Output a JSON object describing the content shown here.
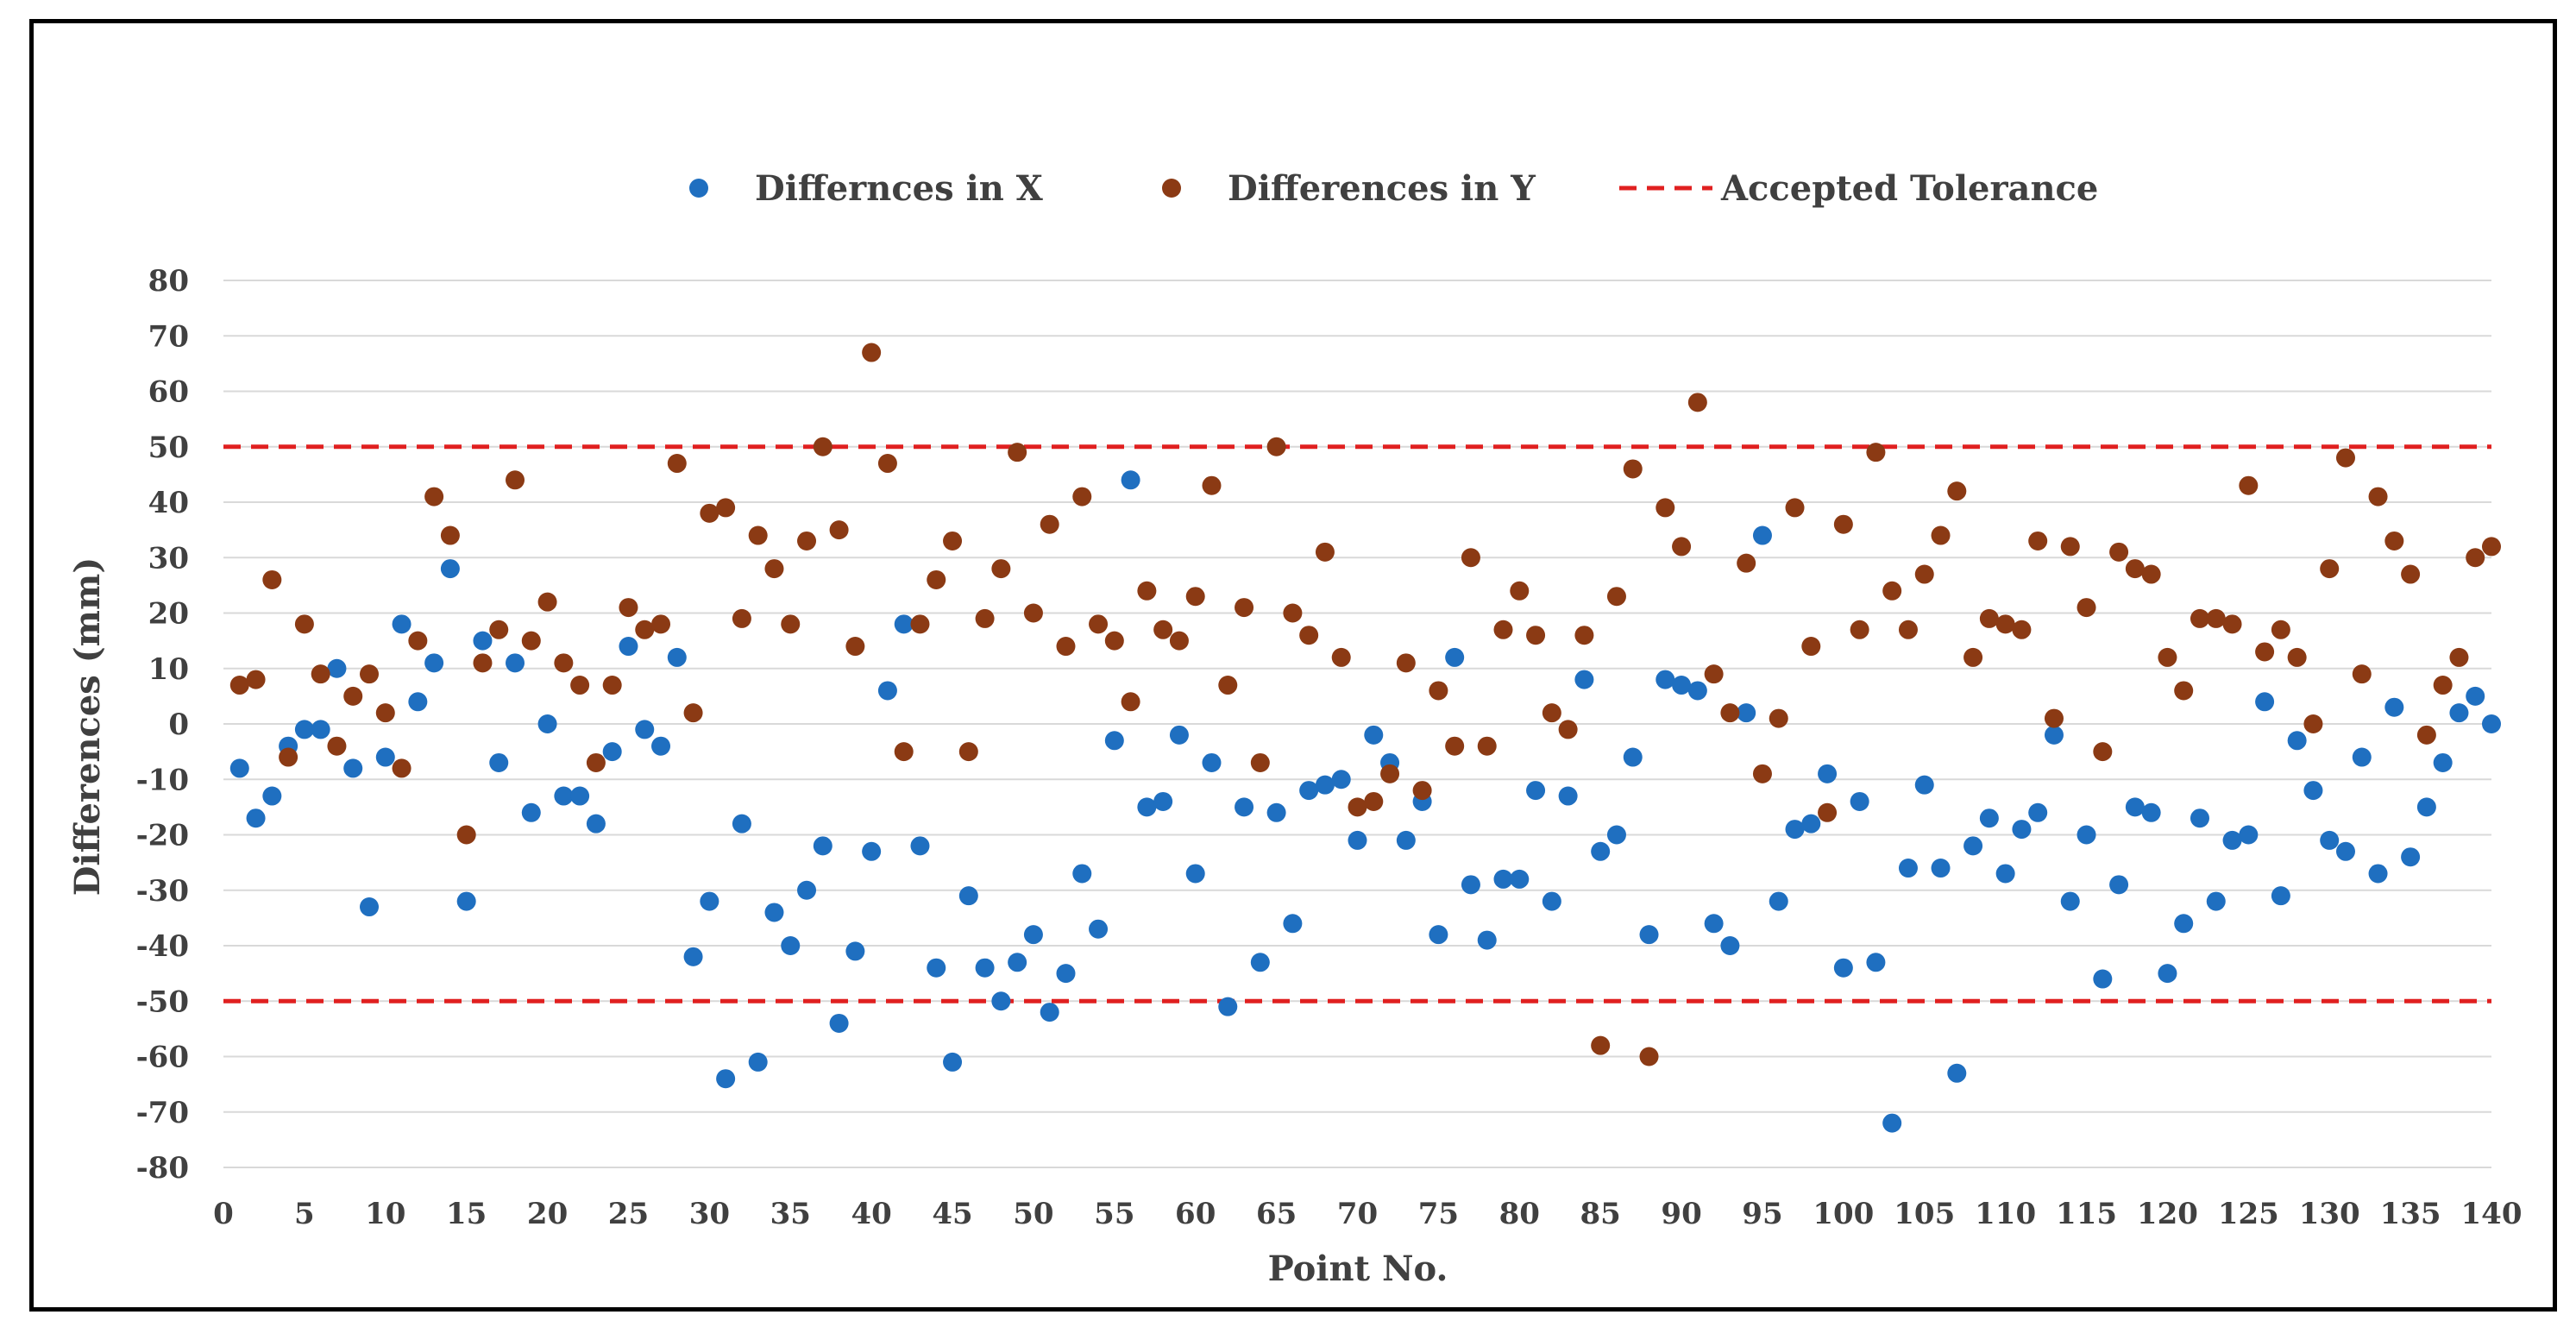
{
  "chart_data": {
    "type": "scatter",
    "title": "",
    "xlabel": "Point No.",
    "ylabel": "Differences (mm)",
    "xlim": [
      0,
      140
    ],
    "ylim": [
      -80,
      80
    ],
    "xticks": [
      0,
      5,
      10,
      15,
      20,
      25,
      30,
      35,
      40,
      45,
      50,
      55,
      60,
      65,
      70,
      75,
      80,
      85,
      90,
      95,
      100,
      105,
      110,
      115,
      120,
      125,
      130,
      135,
      140
    ],
    "yticks": [
      -80,
      -70,
      -60,
      -50,
      -40,
      -30,
      -20,
      -10,
      0,
      10,
      20,
      30,
      40,
      50,
      60,
      70,
      80
    ],
    "grid": true,
    "legend_position": "top",
    "tolerance": {
      "name": "Accepted Tolerance",
      "upper": 50,
      "lower": -50,
      "color": "#e02020"
    },
    "series": [
      {
        "name": "Differnces in X",
        "color": "#1f6fc0",
        "values": [
          -8,
          -17,
          -13,
          -4,
          -1,
          -1,
          10,
          -8,
          -33,
          -6,
          18,
          4,
          11,
          28,
          -32,
          15,
          -7,
          11,
          -16,
          0,
          -13,
          -13,
          -18,
          -5,
          14,
          -1,
          -4,
          12,
          -42,
          -32,
          -64,
          -18,
          -61,
          -34,
          -40,
          -30,
          -22,
          -54,
          -41,
          -23,
          6,
          18,
          -22,
          -44,
          -61,
          -31,
          -44,
          -50,
          -43,
          -38,
          -52,
          -45,
          -27,
          -37,
          -3,
          44,
          -15,
          -14,
          -2,
          -27,
          -7,
          -51,
          -15,
          -43,
          -16,
          -36,
          -12,
          -11,
          -10,
          -21,
          -2,
          -7,
          -21,
          -14,
          -38,
          12,
          -29,
          -39,
          -28,
          -28,
          -12,
          -32,
          -13,
          8,
          -23,
          -20,
          -6,
          -38,
          8,
          7,
          6,
          -36,
          -40,
          2,
          34,
          -32,
          -19,
          -18,
          -9,
          -44,
          -14,
          -43,
          -72,
          -26,
          -11,
          -26,
          -63,
          -22,
          -17,
          -27,
          -19,
          -16,
          -2,
          -32,
          -20,
          -46,
          -29,
          -15,
          -16,
          -45,
          -36,
          -17,
          -32,
          -21,
          -20,
          4,
          -31,
          -3,
          -12,
          -21,
          -23,
          -6,
          -27,
          3,
          -24,
          -15,
          -7,
          2,
          5,
          0
        ]
      },
      {
        "name": "Differences in Y",
        "color": "#8b3a14",
        "values": [
          7,
          8,
          26,
          -6,
          18,
          9,
          -4,
          5,
          9,
          2,
          -8,
          15,
          41,
          34,
          -20,
          11,
          17,
          44,
          15,
          22,
          11,
          7,
          -7,
          7,
          21,
          17,
          18,
          47,
          2,
          38,
          39,
          19,
          34,
          28,
          18,
          33,
          50,
          35,
          14,
          67,
          47,
          -5,
          18,
          26,
          33,
          -5,
          19,
          28,
          49,
          20,
          36,
          14,
          41,
          18,
          15,
          4,
          24,
          17,
          15,
          23,
          43,
          7,
          21,
          -7,
          50,
          20,
          16,
          31,
          12,
          -15,
          -14,
          -9,
          11,
          -12,
          6,
          -4,
          30,
          -4,
          17,
          24,
          16,
          2,
          -1,
          16,
          -58,
          23,
          46,
          -60,
          39,
          32,
          58,
          9,
          2,
          29,
          -9,
          1,
          39,
          14,
          -16,
          36,
          17,
          49,
          24,
          17,
          27,
          34,
          42,
          12,
          19,
          18,
          17,
          33,
          1,
          32,
          21,
          -5,
          31,
          28,
          27,
          12,
          6,
          19,
          19,
          18,
          43,
          13,
          17,
          12,
          0,
          28,
          48,
          9,
          41,
          33,
          27,
          -2,
          7,
          12,
          30,
          32
        ]
      }
    ]
  }
}
